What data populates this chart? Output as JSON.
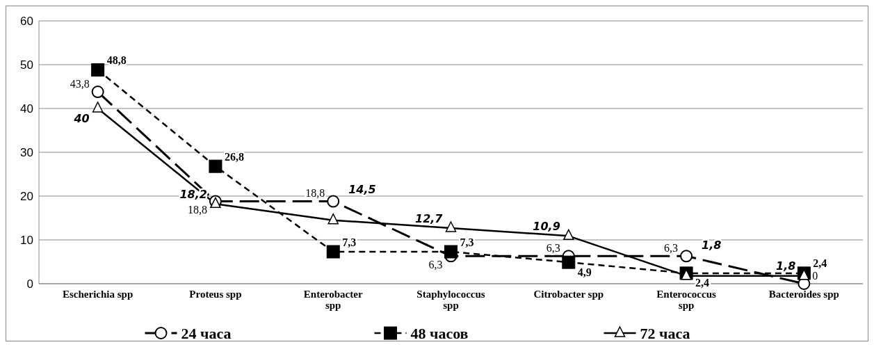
{
  "chart_data": {
    "type": "line",
    "categories": [
      "Escherichia spp",
      "Proteus spp",
      "Enterobacter spp",
      "Staphylococcus spp",
      "Citrobacter spp",
      "Enterococcus spp",
      "Bacteroides spp"
    ],
    "series": [
      {
        "name": "24 часа",
        "color": "#000000",
        "values": [
          43.8,
          18.8,
          18.8,
          6.3,
          6.3,
          6.3,
          0
        ],
        "value_labels": [
          "43,8",
          "18,8",
          "18,8",
          "6,3",
          "6,3",
          "6,3",
          "0"
        ],
        "marker": "circle",
        "line_style": "dashed"
      },
      {
        "name": "48 часов",
        "color": "#000000",
        "values": [
          48.8,
          26.8,
          7.3,
          7.3,
          4.9,
          2.4,
          2.4
        ],
        "value_labels": [
          "48,8",
          "26,8",
          "7,3",
          "7,3",
          "4,9",
          "2,4",
          "2,4"
        ],
        "marker": "square",
        "line_style": "dashed"
      },
      {
        "name": "72 часа",
        "color": "#000000",
        "values": [
          40,
          18.2,
          14.5,
          12.7,
          10.9,
          1.8,
          1.8
        ],
        "value_labels": [
          "40",
          "18,2",
          "14,5",
          "12,7",
          "10,9",
          "1,8",
          "1,8"
        ],
        "marker": "triangle",
        "line_style": "solid"
      }
    ],
    "ylim": [
      0,
      60
    ],
    "yticks": [
      0,
      10,
      20,
      30,
      40,
      50,
      60
    ],
    "grid": "y",
    "legend": "bottom"
  }
}
